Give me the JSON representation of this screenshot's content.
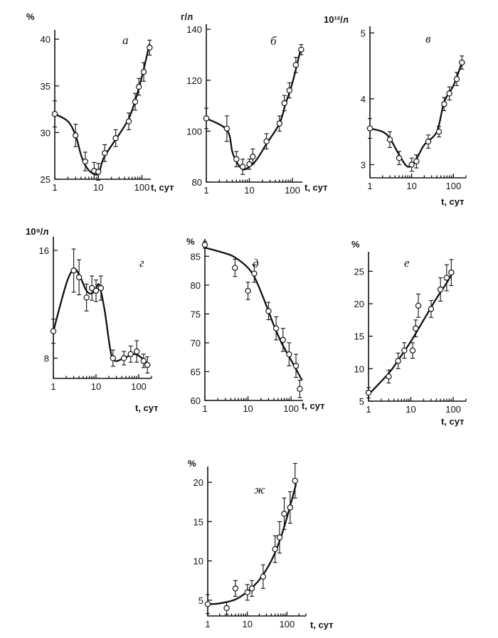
{
  "chart_data": [
    {
      "id": "a",
      "type": "scatter",
      "panel_label": "а",
      "ylabel": "%",
      "xlabel": "t, сут",
      "x_scale": "log",
      "xlim": [
        1,
        160
      ],
      "ylim": [
        25,
        41
      ],
      "xticks": [
        1,
        10,
        100
      ],
      "yticks": [
        25,
        30,
        35,
        40
      ],
      "points": [
        [
          1,
          32
        ],
        [
          3,
          29.7
        ],
        [
          5,
          26.9
        ],
        [
          8,
          25.9
        ],
        [
          10,
          25.8
        ],
        [
          14,
          27.8
        ],
        [
          25,
          29.4
        ],
        [
          50,
          31.2
        ],
        [
          70,
          33.3
        ],
        [
          85,
          34.9
        ],
        [
          110,
          36.5
        ],
        [
          150,
          39.1
        ]
      ],
      "errors": [
        1.4,
        1.2,
        1.0,
        0.9,
        0.9,
        0.9,
        0.9,
        0.9,
        0.9,
        0.9,
        1.0,
        0.8
      ],
      "curve": [
        [
          1,
          32
        ],
        [
          2,
          31.2
        ],
        [
          3,
          29.7
        ],
        [
          4,
          27.6
        ],
        [
          5,
          26.5
        ],
        [
          7,
          25.7
        ],
        [
          10,
          25.6
        ],
        [
          13,
          27.2
        ],
        [
          20,
          28.6
        ],
        [
          30,
          29.8
        ],
        [
          50,
          31.5
        ],
        [
          70,
          33.4
        ],
        [
          100,
          36
        ],
        [
          150,
          39.5
        ]
      ]
    },
    {
      "id": "b",
      "type": "scatter",
      "panel_label": "б",
      "ylabel": "г/л",
      "xlabel": "t, сут",
      "x_scale": "log",
      "xlim": [
        1,
        170
      ],
      "ylim": [
        80,
        142
      ],
      "xticks": [
        1,
        10,
        100
      ],
      "yticks": [
        80,
        100,
        120,
        140
      ],
      "points": [
        [
          1,
          105
        ],
        [
          3,
          101
        ],
        [
          5,
          89
        ],
        [
          7,
          86
        ],
        [
          10,
          87
        ],
        [
          12,
          90
        ],
        [
          25,
          96
        ],
        [
          50,
          103
        ],
        [
          65,
          111
        ],
        [
          85,
          116
        ],
        [
          120,
          126
        ],
        [
          160,
          132
        ]
      ],
      "errors": [
        4,
        5,
        3,
        3,
        2,
        3,
        3,
        3,
        3,
        3,
        3,
        2
      ],
      "curve": [
        [
          1,
          105
        ],
        [
          3,
          100.5
        ],
        [
          4,
          92
        ],
        [
          5,
          88
        ],
        [
          7,
          85
        ],
        [
          10,
          86
        ],
        [
          15,
          89
        ],
        [
          25,
          95
        ],
        [
          50,
          103
        ],
        [
          70,
          111
        ],
        [
          100,
          119
        ],
        [
          160,
          133
        ]
      ]
    },
    {
      "id": "c",
      "type": "scatter",
      "panel_label": "в",
      "ylabel": "10¹²/л",
      "xlabel": "t, сут",
      "x_scale": "log",
      "xlim": [
        1,
        200
      ],
      "ylim": [
        2.8,
        5.1
      ],
      "xticks": [
        1,
        10,
        100
      ],
      "yticks": [
        3,
        4,
        5
      ],
      "points": [
        [
          1,
          3.55
        ],
        [
          3,
          3.38
        ],
        [
          5,
          3.1
        ],
        [
          10,
          3.0
        ],
        [
          13,
          3.05
        ],
        [
          25,
          3.35
        ],
        [
          45,
          3.5
        ],
        [
          60,
          3.92
        ],
        [
          80,
          4.08
        ],
        [
          120,
          4.3
        ],
        [
          160,
          4.55
        ]
      ],
      "errors": [
        0.15,
        0.12,
        0.1,
        0.1,
        0.1,
        0.1,
        0.08,
        0.1,
        0.1,
        0.1,
        0.1
      ],
      "curve": [
        [
          1,
          3.55
        ],
        [
          2,
          3.5
        ],
        [
          3,
          3.4
        ],
        [
          5,
          3.15
        ],
        [
          8,
          2.97
        ],
        [
          12,
          3.05
        ],
        [
          20,
          3.3
        ],
        [
          40,
          3.5
        ],
        [
          60,
          3.95
        ],
        [
          100,
          4.2
        ],
        [
          160,
          4.55
        ]
      ]
    },
    {
      "id": "d",
      "type": "scatter",
      "panel_label": "г",
      "ylabel": "10⁹/л",
      "xlabel": "t, сут",
      "x_scale": "log",
      "xlim": [
        1,
        200
      ],
      "ylim": [
        6.5,
        17
      ],
      "xticks": [
        1,
        10,
        100
      ],
      "yticks": [
        8,
        16
      ],
      "points": [
        [
          1,
          10
        ],
        [
          3,
          14.5
        ],
        [
          4,
          14
        ],
        [
          6,
          12.5
        ],
        [
          8,
          13.2
        ],
        [
          10,
          13
        ],
        [
          13,
          13.2
        ],
        [
          25,
          8
        ],
        [
          45,
          8
        ],
        [
          65,
          8.3
        ],
        [
          90,
          8.5
        ],
        [
          130,
          7.8
        ],
        [
          160,
          7.5
        ]
      ],
      "errors": [
        0.9,
        1.6,
        1.3,
        1.0,
        0.9,
        0.8,
        0.9,
        0.6,
        0.5,
        0.6,
        0.8,
        0.5,
        0.6
      ],
      "curve": [
        [
          1,
          10
        ],
        [
          2,
          13.5
        ],
        [
          3,
          14.6
        ],
        [
          4,
          14.2
        ],
        [
          6,
          13
        ],
        [
          8,
          12.8
        ],
        [
          10,
          13.2
        ],
        [
          12,
          13.4
        ],
        [
          16,
          11.5
        ],
        [
          22,
          8.5
        ],
        [
          28,
          7.8
        ],
        [
          45,
          8
        ],
        [
          80,
          8.3
        ],
        [
          130,
          7.9
        ],
        [
          170,
          7.4
        ]
      ]
    },
    {
      "id": "e",
      "type": "scatter",
      "panel_label": "д",
      "ylabel": "%",
      "xlabel": "t, сут",
      "x_scale": "log",
      "xlim": [
        1,
        190
      ],
      "ylim": [
        60,
        88
      ],
      "xticks": [
        1,
        10,
        100
      ],
      "yticks": [
        60,
        65,
        70,
        75,
        80,
        85
      ],
      "points": [
        [
          1,
          87
        ],
        [
          5,
          83
        ],
        [
          10,
          79
        ],
        [
          14,
          82
        ],
        [
          30,
          75.5
        ],
        [
          45,
          72.5
        ],
        [
          65,
          70.5
        ],
        [
          90,
          68
        ],
        [
          130,
          66
        ],
        [
          160,
          62
        ]
      ],
      "errors": [
        0.6,
        1.5,
        1.5,
        1.5,
        1.5,
        2.0,
        2.0,
        2.0,
        2.0,
        1.5
      ],
      "curve": [
        [
          1,
          86.5
        ],
        [
          3,
          85.5
        ],
        [
          5,
          84.8
        ],
        [
          10,
          83
        ],
        [
          15,
          81
        ],
        [
          25,
          77
        ],
        [
          40,
          73
        ],
        [
          60,
          70
        ],
        [
          100,
          67
        ],
        [
          180,
          63.5
        ]
      ]
    },
    {
      "id": "f",
      "type": "scatter",
      "panel_label": "е",
      "ylabel": "%",
      "xlabel": "t, сут",
      "x_scale": "log",
      "xlim": [
        1,
        200
      ],
      "ylim": [
        5,
        28
      ],
      "xticks": [
        1,
        10,
        100
      ],
      "yticks": [
        5,
        10,
        15,
        20,
        25
      ],
      "points": [
        [
          1,
          6.3
        ],
        [
          3,
          8.8
        ],
        [
          5,
          11.2
        ],
        [
          7,
          12.8
        ],
        [
          11,
          12.8
        ],
        [
          13,
          16.2
        ],
        [
          15,
          19.7
        ],
        [
          30,
          19.2
        ],
        [
          50,
          22.2
        ],
        [
          70,
          24
        ],
        [
          90,
          24.8
        ]
      ],
      "errors": [
        0.8,
        1.0,
        1.2,
        1.2,
        1.2,
        1.3,
        1.8,
        1.3,
        1.8,
        2.0,
        2.0
      ],
      "curve": [
        [
          1,
          6
        ],
        [
          3,
          9.3
        ],
        [
          5,
          11.3
        ],
        [
          10,
          14.2
        ],
        [
          20,
          17.5
        ],
        [
          40,
          20.8
        ],
        [
          70,
          23.2
        ],
        [
          100,
          25
        ]
      ]
    },
    {
      "id": "g",
      "type": "scatter",
      "panel_label": "ж",
      "ylabel": "%",
      "xlabel": "t, сут",
      "x_scale": "log",
      "xlim": [
        1,
        300
      ],
      "ylim": [
        3,
        22
      ],
      "xticks": [
        1,
        10,
        100
      ],
      "yticks": [
        5,
        10,
        15,
        20
      ],
      "points": [
        [
          1,
          4.5
        ],
        [
          3,
          4
        ],
        [
          5,
          6.5
        ],
        [
          10,
          6
        ],
        [
          13,
          6.5
        ],
        [
          25,
          8
        ],
        [
          50,
          11.5
        ],
        [
          65,
          13
        ],
        [
          85,
          16
        ],
        [
          120,
          16.8
        ],
        [
          160,
          20.2
        ]
      ],
      "errors": [
        1.2,
        0.8,
        1.0,
        1.0,
        1.0,
        1.5,
        1.7,
        2.0,
        2.0,
        2.0,
        2.2
      ],
      "curve": [
        [
          1,
          4.5
        ],
        [
          2,
          4.6
        ],
        [
          5,
          5.1
        ],
        [
          10,
          6.1
        ],
        [
          20,
          7.6
        ],
        [
          40,
          10
        ],
        [
          70,
          13
        ],
        [
          110,
          16.3
        ],
        [
          170,
          19.8
        ]
      ]
    }
  ]
}
